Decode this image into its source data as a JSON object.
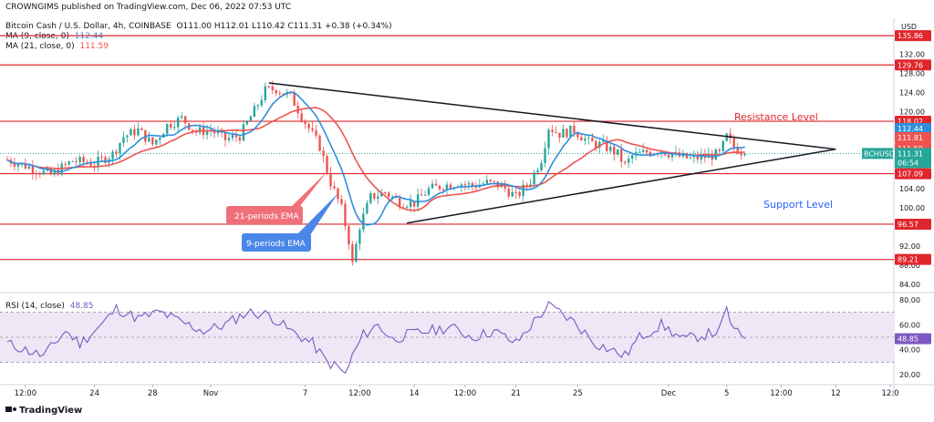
{
  "publisher_line": "CROWNGIMS published on TradingView.com, Dec 06, 2022 07:53 UTC",
  "legend": {
    "symbol": "Bitcoin Cash / U.S. Dollar, 4h, COINBASE",
    "ohlc": "O111.00  H112.01  L110.42  C111.31  +0.38 (+0.34%)",
    "ma9_label": "MA (9, close, 0)",
    "ma9_value": "112.44",
    "ma21_label": "MA (21, close, 0)",
    "ma21_value": "111.59",
    "rsi_label": "RSI (14, close)",
    "rsi_value": "48.85"
  },
  "colors": {
    "up": "#26a69a",
    "down": "#ef5350",
    "ma9": "#2f8fdc",
    "ma21": "#ef5350",
    "level_line": "#e0262d",
    "trendline": "#131722",
    "rsi_line": "#7e57c2",
    "rsi_band": "#ede7f6",
    "price_tag": "#26a69a",
    "ema21_box": "#f0707a",
    "ema9_box": "#4a86e8",
    "annotation_text": "#2962ff",
    "resistance_text": "#e0262d"
  },
  "annotations": {
    "resistance": "Resistance Level",
    "support": "Support Level",
    "ema21": "21-periods EMA",
    "ema9": "9-periods EMA"
  },
  "footer": {
    "logo_text": "TradingView"
  },
  "chart_data": {
    "type": "candlestick",
    "currency": "USD",
    "ticker_tag": "BCHUSD",
    "countdown": "06:54",
    "price_axis": {
      "ticks": [
        136.0,
        132.0,
        128.0,
        124.0,
        120.0,
        116.0,
        112.0,
        108.0,
        104.0,
        100.0,
        96.0,
        92.0,
        88.0,
        84.0
      ],
      "ylim": [
        82.5,
        139.5
      ]
    },
    "rsi_axis": {
      "ticks": [
        80.0,
        60.0,
        40.0,
        20.0
      ],
      "ylim": [
        15,
        85
      ],
      "band": [
        30,
        70
      ],
      "mid": 50
    },
    "x_ticks": [
      "12:00",
      "24",
      "28",
      "Nov",
      "7",
      "12:00",
      "14",
      "12:00",
      "21",
      "25",
      "Dec",
      "5",
      "12:00",
      "12",
      "12:0"
    ],
    "x_tick_bars": [
      5,
      24,
      40,
      56,
      82,
      97,
      112,
      126,
      140,
      157,
      182,
      198,
      213,
      228,
      243
    ],
    "bar_count": 204,
    "xlim_bars": [
      -2,
      244
    ],
    "levels": [
      {
        "value": 135.86,
        "label": "135.86"
      },
      {
        "value": 129.76,
        "label": "129.76"
      },
      {
        "value": 118.02,
        "label": "118.02"
      },
      {
        "value": 107.09,
        "label": "107.09"
      },
      {
        "value": 96.57,
        "label": "96.57"
      },
      {
        "value": 89.21,
        "label": "89.21"
      }
    ],
    "price_tags": [
      {
        "value": 112.44,
        "label": "112.44",
        "color": "#2f8fdc"
      },
      {
        "value": 111.81,
        "label": "111.81",
        "color": "#ef5350"
      },
      {
        "value": 111.59,
        "label": "111.59",
        "color": "#ef5350"
      },
      {
        "value": 111.31,
        "label": "111.31",
        "color": "#26a69a"
      }
    ],
    "last_price": 111.31,
    "trendlines": [
      {
        "from": {
          "bar": 72,
          "price": 126.0
        },
        "to": {
          "bar": 228,
          "price": 112.2
        }
      },
      {
        "from": {
          "bar": 110,
          "price": 96.8
        },
        "to": {
          "bar": 228,
          "price": 112.2
        }
      }
    ],
    "price_anchors": [
      [
        0,
        110.0
      ],
      [
        6,
        108.5
      ],
      [
        12,
        106.8
      ],
      [
        18,
        109.8
      ],
      [
        24,
        109.2
      ],
      [
        29,
        111.2
      ],
      [
        32,
        114.8
      ],
      [
        36,
        116.2
      ],
      [
        40,
        113.2
      ],
      [
        44,
        117.2
      ],
      [
        48,
        118.6
      ],
      [
        52,
        115.8
      ],
      [
        56,
        116.2
      ],
      [
        60,
        114.2
      ],
      [
        64,
        115.0
      ],
      [
        68,
        120.2
      ],
      [
        71,
        124.4
      ],
      [
        74,
        124.8
      ],
      [
        78,
        123.2
      ],
      [
        82,
        117.8
      ],
      [
        86,
        112.8
      ],
      [
        89,
        105.2
      ],
      [
        92,
        99.8
      ],
      [
        94,
        93.2
      ],
      [
        95,
        88.2
      ],
      [
        97,
        96.2
      ],
      [
        100,
        102.2
      ],
      [
        104,
        103.2
      ],
      [
        108,
        101.2
      ],
      [
        112,
        101.0
      ],
      [
        116,
        103.8
      ],
      [
        120,
        104.6
      ],
      [
        124,
        105.2
      ],
      [
        128,
        104.6
      ],
      [
        132,
        105.2
      ],
      [
        136,
        104.6
      ],
      [
        140,
        102.2
      ],
      [
        144,
        105.6
      ],
      [
        147,
        110.2
      ],
      [
        149,
        116.8
      ],
      [
        152,
        115.4
      ],
      [
        156,
        116.2
      ],
      [
        160,
        113.6
      ],
      [
        164,
        113.0
      ],
      [
        168,
        111.2
      ],
      [
        170,
        108.8
      ],
      [
        172,
        110.8
      ],
      [
        176,
        111.6
      ],
      [
        180,
        112.0
      ],
      [
        184,
        110.8
      ],
      [
        188,
        110.2
      ],
      [
        192,
        110.6
      ],
      [
        196,
        111.2
      ],
      [
        198,
        114.8
      ],
      [
        200,
        112.6
      ],
      [
        203,
        111.31
      ]
    ],
    "rsi_anchors": [
      [
        0,
        45
      ],
      [
        5,
        40
      ],
      [
        10,
        35
      ],
      [
        16,
        55
      ],
      [
        20,
        45
      ],
      [
        26,
        60
      ],
      [
        30,
        73
      ],
      [
        36,
        65
      ],
      [
        42,
        70
      ],
      [
        48,
        62
      ],
      [
        54,
        55
      ],
      [
        60,
        60
      ],
      [
        66,
        70
      ],
      [
        72,
        68
      ],
      [
        78,
        55
      ],
      [
        84,
        45
      ],
      [
        88,
        30
      ],
      [
        91,
        26
      ],
      [
        93,
        20
      ],
      [
        95,
        35
      ],
      [
        98,
        52
      ],
      [
        102,
        60
      ],
      [
        106,
        48
      ],
      [
        110,
        52
      ],
      [
        116,
        55
      ],
      [
        122,
        58
      ],
      [
        128,
        50
      ],
      [
        134,
        55
      ],
      [
        140,
        45
      ],
      [
        146,
        66
      ],
      [
        149,
        75
      ],
      [
        152,
        70
      ],
      [
        156,
        62
      ],
      [
        162,
        45
      ],
      [
        166,
        40
      ],
      [
        170,
        35
      ],
      [
        174,
        50
      ],
      [
        180,
        60
      ],
      [
        186,
        48
      ],
      [
        192,
        52
      ],
      [
        196,
        55
      ],
      [
        198,
        72
      ],
      [
        200,
        55
      ],
      [
        203,
        48.85
      ]
    ],
    "rsi_last": 48.85
  }
}
